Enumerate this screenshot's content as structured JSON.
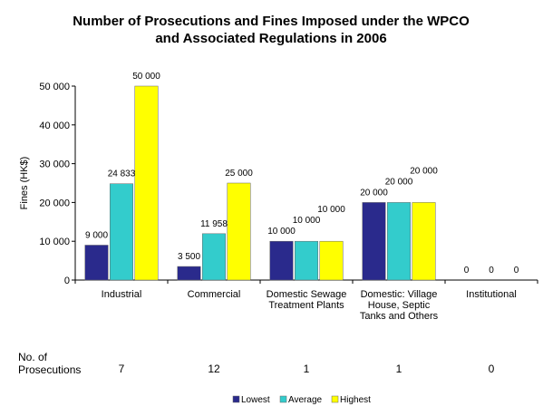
{
  "chart_data": {
    "type": "bar",
    "title_lines": [
      "Number of Prosecutions and Fines Imposed under the WPCO",
      "and Associated Regulations in 2006"
    ],
    "ylabel": "Fines (HK$)",
    "ylim": [
      0,
      50000
    ],
    "yticks": [
      0,
      10000,
      20000,
      30000,
      40000,
      50000
    ],
    "ytick_labels": [
      "0",
      "10 000",
      "20 000",
      "30 000",
      "40 000",
      "50 000"
    ],
    "grid": false,
    "legend_position": "bottom",
    "categories": [
      [
        "Industrial"
      ],
      [
        "Commercial"
      ],
      [
        "Domestic Sewage",
        "Treatment Plants"
      ],
      [
        "Domestic: Village",
        "House, Septic",
        "Tanks and Others"
      ],
      [
        "Institutional"
      ]
    ],
    "series": [
      {
        "name": "Lowest",
        "color": "#2a2a8c",
        "values": [
          9000,
          3500,
          10000,
          20000,
          0
        ],
        "labels": [
          "9 000",
          "3 500",
          "10 000",
          "20 000",
          "0"
        ]
      },
      {
        "name": "Average",
        "color": "#33cccc",
        "values": [
          24833,
          11958,
          10000,
          20000,
          0
        ],
        "labels": [
          "24 833",
          "11 958",
          "10 000",
          "20 000",
          "0"
        ]
      },
      {
        "name": "Highest",
        "color": "#ffff00",
        "values": [
          50000,
          25000,
          10000,
          20000,
          0
        ],
        "labels": [
          "50 000",
          "25 000",
          "10 000",
          "20 000",
          "0"
        ]
      }
    ],
    "prosecutions": {
      "label_lines": [
        "No. of",
        "Prosecutions"
      ],
      "values": [
        "7",
        "12",
        "1",
        "1",
        "0"
      ]
    }
  }
}
